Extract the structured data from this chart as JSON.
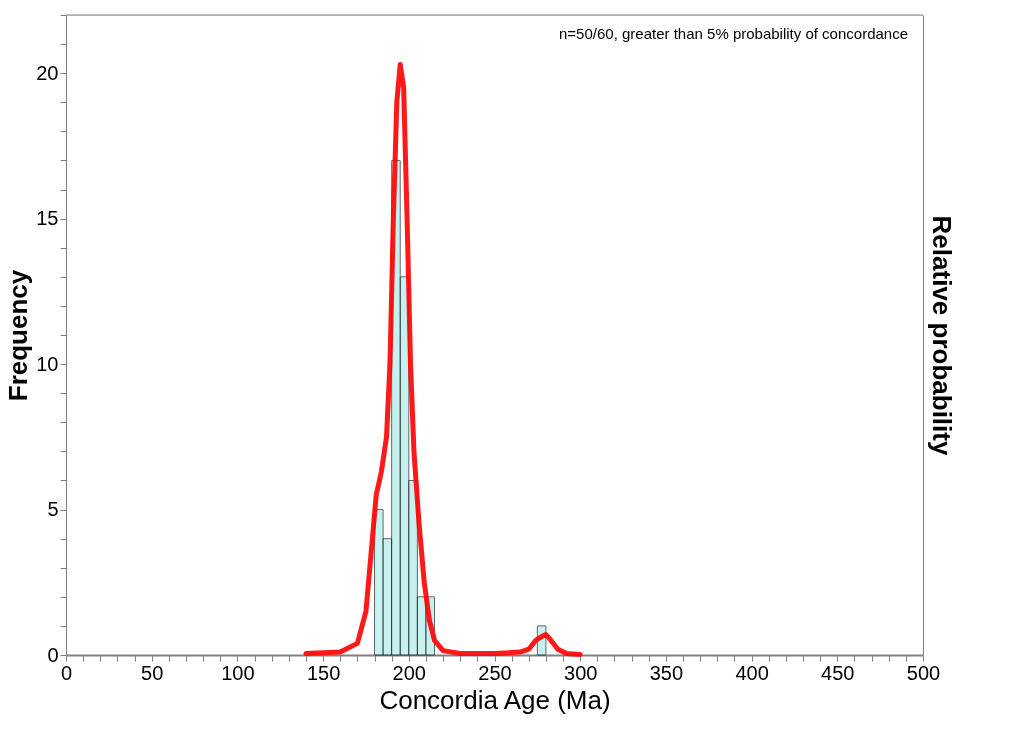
{
  "chart_data": {
    "type": "histogram",
    "xlabel": "Concordia Age (Ma)",
    "ylabel": "Frequency",
    "y2label": "Relative probability",
    "annotations": [
      "n=50/60, greater than 5% probability of concordance"
    ],
    "bins": [
      180,
      185,
      190,
      195,
      200,
      205,
      210,
      215,
      220,
      225,
      230,
      235,
      240,
      245,
      250,
      255,
      260,
      265,
      270,
      275,
      280
    ],
    "values": [
      5,
      4,
      17,
      13,
      6,
      2,
      2,
      0,
      0,
      0,
      0,
      0,
      0,
      0,
      0,
      0,
      0,
      0,
      0,
      1
    ],
    "color": "#a0e8e8",
    "series": [
      {
        "type": "line",
        "color": "#ff0000",
        "x": [
          140,
          160,
          170,
          175,
          178,
          181,
          184,
          187,
          189,
          191,
          193,
          195,
          197,
          199,
          201,
          203,
          206,
          209,
          212,
          215,
          220,
          230,
          250,
          265,
          270,
          274,
          278,
          280,
          283,
          287,
          292,
          300
        ],
        "values": [
          0.05,
          0.1,
          0.4,
          1.5,
          3.5,
          5.5,
          6.3,
          7.5,
          10,
          15,
          19,
          20.3,
          19.5,
          15,
          10,
          7,
          4.5,
          2.5,
          1.2,
          0.5,
          0.15,
          0.05,
          0.05,
          0.1,
          0.2,
          0.5,
          0.65,
          0.7,
          0.5,
          0.2,
          0.05,
          0.02
        ]
      }
    ],
    "xlim": [
      0,
      500
    ],
    "xticks": [
      0,
      {
        "value": 10,
        "label": null
      },
      {
        "value": 20,
        "label": null
      },
      {
        "value": 30,
        "label": null
      },
      {
        "value": 40,
        "label": null
      },
      50,
      {
        "value": 60,
        "label": null
      },
      {
        "value": 70,
        "label": null
      },
      {
        "value": 80,
        "label": null
      },
      {
        "value": 90,
        "label": null
      },
      100,
      {
        "value": 110,
        "label": null
      },
      {
        "value": 120,
        "label": null
      },
      {
        "value": 130,
        "label": null
      },
      {
        "value": 140,
        "label": null
      },
      150,
      {
        "value": 160,
        "label": null
      },
      {
        "value": 170,
        "label": null
      },
      {
        "value": 180,
        "label": null
      },
      {
        "value": 190,
        "label": null
      },
      200,
      {
        "value": 210,
        "label": null
      },
      {
        "value": 220,
        "label": null
      },
      {
        "value": 230,
        "label": null
      },
      {
        "value": 240,
        "label": null
      },
      250,
      {
        "value": 260,
        "label": null
      },
      {
        "value": 270,
        "label": null
      },
      {
        "value": 280,
        "label": null
      },
      {
        "value": 290,
        "label": null
      },
      300,
      {
        "value": 310,
        "label": null
      },
      {
        "value": 320,
        "label": null
      },
      {
        "value": 330,
        "label": null
      },
      {
        "value": 340,
        "label": null
      },
      350,
      {
        "value": 360,
        "label": null
      },
      {
        "value": 370,
        "label": null
      },
      {
        "value": 380,
        "label": null
      },
      {
        "value": 390,
        "label": null
      },
      400,
      {
        "value": 410,
        "label": null
      },
      {
        "value": 420,
        "label": null
      },
      {
        "value": 430,
        "label": null
      },
      {
        "value": 440,
        "label": null
      },
      450,
      {
        "value": 460,
        "label": null
      },
      {
        "value": 470,
        "label": null
      },
      {
        "value": 480,
        "label": null
      },
      {
        "value": 490,
        "label": null
      },
      500
    ],
    "ylim": [
      0,
      22
    ],
    "yticks": [
      0,
      {
        "value": 1,
        "label": null
      },
      {
        "value": 2,
        "label": null
      },
      {
        "value": 3,
        "label": null
      },
      {
        "value": 4,
        "label": null
      },
      5,
      {
        "value": 6,
        "label": null
      },
      {
        "value": 7,
        "label": null
      },
      {
        "value": 8,
        "label": null
      },
      {
        "value": 9,
        "label": null
      },
      10,
      {
        "value": 11,
        "label": null
      },
      {
        "value": 12,
        "label": null
      },
      {
        "value": 13,
        "label": null
      },
      {
        "value": 14,
        "label": null
      },
      15,
      {
        "value": 16,
        "label": null
      },
      {
        "value": 17,
        "label": null
      },
      {
        "value": 18,
        "label": null
      },
      {
        "value": 19,
        "label": null
      },
      20,
      {
        "value": 21,
        "label": null
      },
      {
        "value": 22,
        "label": null
      }
    ],
    "grid": false
  }
}
